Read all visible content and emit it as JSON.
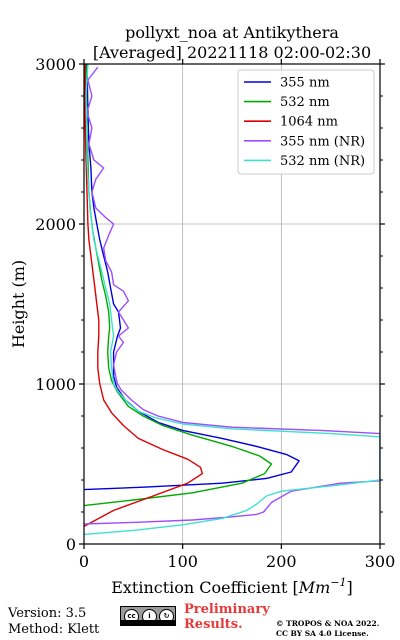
{
  "chart_data": {
    "type": "line",
    "title": "pollyxt_noa at Antikythera",
    "subtitle": "[Averaged] 20221118 02:00-02:30",
    "xlabel": "Extinction Coefficient [",
    "xlabel_unit": "Mm",
    "xlabel_exp": "−1",
    "xlabel_end": "]",
    "ylabel": "Height (m)",
    "xlim": [
      0,
      300
    ],
    "ylim": [
      0,
      3000
    ],
    "xticks": [
      0,
      100,
      200,
      300
    ],
    "yticks": [
      0,
      1000,
      2000,
      3000
    ],
    "grid": true,
    "legend_position": "top-right",
    "series": [
      {
        "name": "355 nm",
        "color": "#0000dd",
        "points": [
          [
            0,
            340
          ],
          [
            60,
            355
          ],
          [
            140,
            380
          ],
          [
            185,
            410
          ],
          [
            210,
            450
          ],
          [
            218,
            520
          ],
          [
            205,
            560
          ],
          [
            175,
            610
          ],
          [
            140,
            660
          ],
          [
            100,
            710
          ],
          [
            75,
            760
          ],
          [
            55,
            830
          ],
          [
            42,
            900
          ],
          [
            33,
            980
          ],
          [
            30,
            1050
          ],
          [
            30,
            1130
          ],
          [
            30,
            1200
          ],
          [
            34,
            1300
          ],
          [
            37,
            1350
          ],
          [
            35,
            1450
          ],
          [
            30,
            1500
          ],
          [
            27,
            1600
          ],
          [
            24,
            1700
          ],
          [
            20,
            1800
          ],
          [
            16,
            1900
          ],
          [
            13,
            2000
          ],
          [
            10,
            2100
          ],
          [
            8,
            2200
          ],
          [
            7,
            2350
          ],
          [
            5,
            2500
          ],
          [
            4,
            2700
          ],
          [
            3,
            3000
          ]
        ]
      },
      {
        "name": "532 nm",
        "color": "#00aa00",
        "points": [
          [
            0,
            240
          ],
          [
            50,
            275
          ],
          [
            110,
            320
          ],
          [
            160,
            380
          ],
          [
            183,
            440
          ],
          [
            190,
            500
          ],
          [
            178,
            550
          ],
          [
            150,
            610
          ],
          [
            110,
            680
          ],
          [
            80,
            740
          ],
          [
            60,
            800
          ],
          [
            45,
            860
          ],
          [
            34,
            950
          ],
          [
            28,
            1020
          ],
          [
            25,
            1100
          ],
          [
            24,
            1200
          ],
          [
            25,
            1300
          ],
          [
            26,
            1350
          ],
          [
            25,
            1450
          ],
          [
            22,
            1550
          ],
          [
            18,
            1650
          ],
          [
            15,
            1750
          ],
          [
            12,
            1850
          ],
          [
            9,
            1950
          ],
          [
            7,
            2050
          ],
          [
            5,
            2200
          ],
          [
            4,
            2400
          ],
          [
            3,
            2600
          ],
          [
            2,
            3000
          ]
        ]
      },
      {
        "name": "1064 nm",
        "color": "#dd0000",
        "points": [
          [
            0,
            110
          ],
          [
            30,
            210
          ],
          [
            70,
            300
          ],
          [
            105,
            380
          ],
          [
            120,
            440
          ],
          [
            118,
            480
          ],
          [
            105,
            530
          ],
          [
            80,
            590
          ],
          [
            55,
            660
          ],
          [
            40,
            740
          ],
          [
            28,
            820
          ],
          [
            20,
            900
          ],
          [
            16,
            1000
          ],
          [
            14,
            1100
          ],
          [
            14,
            1200
          ],
          [
            15,
            1300
          ],
          [
            15,
            1400
          ],
          [
            13,
            1500
          ],
          [
            11,
            1600
          ],
          [
            9,
            1700
          ],
          [
            7,
            1800
          ],
          [
            5,
            1900
          ],
          [
            4,
            2000
          ],
          [
            3,
            2200
          ],
          [
            2,
            2400
          ],
          [
            1,
            2700
          ],
          [
            1,
            3000
          ]
        ]
      },
      {
        "name": "355 nm (NR)",
        "color": "#9b4dff",
        "points": [
          [
            0,
            125
          ],
          [
            50,
            135
          ],
          [
            110,
            150
          ],
          [
            150,
            170
          ],
          [
            175,
            185
          ],
          [
            182,
            200
          ],
          [
            190,
            260
          ],
          [
            210,
            330
          ],
          [
            260,
            380
          ],
          [
            300,
            395
          ],
          [
            300,
            690
          ],
          [
            240,
            710
          ],
          [
            150,
            730
          ],
          [
            100,
            760
          ],
          [
            75,
            800
          ],
          [
            60,
            840
          ],
          [
            48,
            900
          ],
          [
            38,
            960
          ],
          [
            34,
            1000
          ],
          [
            32,
            1050
          ],
          [
            30,
            1120
          ],
          [
            33,
            1200
          ],
          [
            40,
            1260
          ],
          [
            35,
            1300
          ],
          [
            45,
            1350
          ],
          [
            40,
            1400
          ],
          [
            35,
            1450
          ],
          [
            45,
            1520
          ],
          [
            40,
            1580
          ],
          [
            30,
            1620
          ],
          [
            28,
            1700
          ],
          [
            22,
            1770
          ],
          [
            20,
            1850
          ],
          [
            25,
            1930
          ],
          [
            30,
            2000
          ],
          [
            22,
            2040
          ],
          [
            12,
            2100
          ],
          [
            8,
            2200
          ],
          [
            12,
            2280
          ],
          [
            20,
            2350
          ],
          [
            10,
            2400
          ],
          [
            5,
            2500
          ],
          [
            8,
            2600
          ],
          [
            3,
            2700
          ],
          [
            8,
            2800
          ],
          [
            4,
            2900
          ],
          [
            14,
            2980
          ]
        ]
      },
      {
        "name": "532 nm (NR)",
        "color": "#40e0d0",
        "points": [
          [
            0,
            60
          ],
          [
            50,
            85
          ],
          [
            100,
            120
          ],
          [
            140,
            160
          ],
          [
            165,
            210
          ],
          [
            175,
            250
          ],
          [
            185,
            300
          ],
          [
            200,
            330
          ],
          [
            260,
            370
          ],
          [
            300,
            400
          ],
          [
            300,
            670
          ],
          [
            250,
            690
          ],
          [
            150,
            720
          ],
          [
            100,
            750
          ],
          [
            72,
            790
          ],
          [
            55,
            830
          ],
          [
            45,
            880
          ],
          [
            35,
            950
          ],
          [
            30,
            1000
          ],
          [
            28,
            1100
          ],
          [
            27,
            1200
          ],
          [
            30,
            1300
          ],
          [
            28,
            1400
          ],
          [
            26,
            1500
          ],
          [
            22,
            1600
          ],
          [
            18,
            1700
          ],
          [
            14,
            1800
          ],
          [
            10,
            1900
          ],
          [
            8,
            2000
          ],
          [
            6,
            2100
          ],
          [
            5,
            2200
          ],
          [
            4,
            2300
          ],
          [
            3,
            2400
          ],
          [
            3,
            2600
          ],
          [
            2,
            2800
          ],
          [
            4,
            3000
          ]
        ]
      }
    ]
  },
  "footer": {
    "version": "Version: 3.5",
    "method": "Method: Klett",
    "cc_label": "cc",
    "cc_by": "i",
    "cc_sa": "↻",
    "preliminary_line1": "Preliminary",
    "preliminary_line2": "Results.",
    "license_line1": "© TROPOS & NOA 2022.",
    "license_line2": "CC BY SA 4.0 License."
  }
}
